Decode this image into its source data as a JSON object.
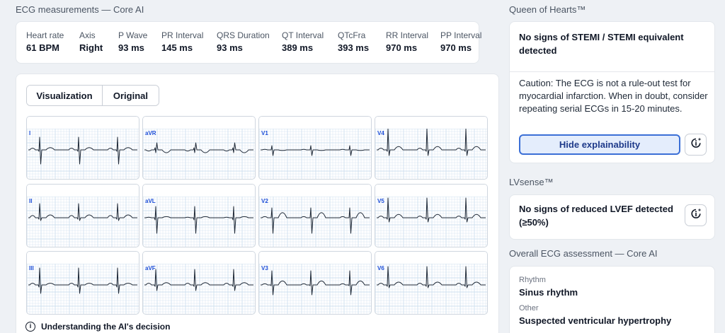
{
  "measurements": {
    "title": "ECG measurements — Core AI",
    "items": [
      {
        "label": "Heart rate",
        "value": "61 BPM"
      },
      {
        "label": "Axis",
        "value": "Right"
      },
      {
        "label": "P Wave",
        "value": "93 ms"
      },
      {
        "label": "PR Interval",
        "value": "145 ms"
      },
      {
        "label": "QRS Duration",
        "value": "93 ms"
      },
      {
        "label": "QT Interval",
        "value": "389 ms"
      },
      {
        "label": "QTcFra",
        "value": "393 ms"
      },
      {
        "label": "RR Interval",
        "value": "970 ms"
      },
      {
        "label": "PP Interval",
        "value": "970 ms"
      }
    ]
  },
  "viewer": {
    "tabs": [
      "Visualization",
      "Original"
    ],
    "leads": [
      "I",
      "aVR",
      "V1",
      "V4",
      "II",
      "aVL",
      "V2",
      "V5",
      "III",
      "aVF",
      "V3",
      "V6"
    ],
    "footer_label": "Understanding the AI's decision",
    "footer_icon": "info-icon"
  },
  "queen_of_hearts": {
    "title": "Queen of Hearts™",
    "result": "No signs of STEMI / STEMI equivalent detected",
    "caution": "Caution: The ECG is not a rule-out test for myocardial infarction. When in doubt, consider repeating serial ECGs in 15-20 minutes.",
    "hide_button": "Hide explainability",
    "explain_icon": "explainability-icon"
  },
  "lvsense": {
    "title": "LVsense™",
    "result": "No signs of reduced LVEF detected (≥50%)",
    "explain_icon": "explainability-icon"
  },
  "overall": {
    "title": "Overall ECG assessment — Core AI",
    "rhythm_label": "Rhythm",
    "rhythm_value": "Sinus rhythm",
    "other_label": "Other",
    "other_value": "Suspected ventricular hypertrophy"
  },
  "colors": {
    "accent": "#3b6fd6",
    "grid": "#cfe0ef",
    "trace": "#1f2937"
  }
}
